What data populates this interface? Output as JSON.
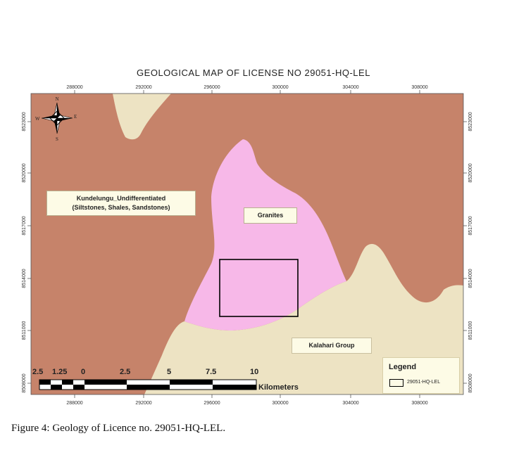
{
  "map": {
    "title": "GEOLOGICAL MAP OF LICENSE NO 29051-HQ-LEL",
    "x_ticks": [
      "288000",
      "292000",
      "296000",
      "300000",
      "304000",
      "308000"
    ],
    "y_ticks": [
      "8523000",
      "8520000",
      "8517000",
      "8514000",
      "8511000",
      "8508000"
    ],
    "units": [
      {
        "name": "Kundelungu_Undifferentiated",
        "detail": "(Siltstones, Shales, Sandstones)",
        "color": "#c6836a"
      },
      {
        "name": "Granites",
        "color": "#f7b8e8"
      },
      {
        "name": "Kalahari Group",
        "color": "#ede3c3"
      }
    ],
    "north_arrow": {
      "n": "N",
      "s": "S",
      "e": "E",
      "w": "W"
    },
    "scale_bar": {
      "labels": [
        "2.5",
        "1.25",
        "0",
        "2.5",
        "5",
        "7.5",
        "10"
      ],
      "units": "Kilometers"
    },
    "legend": {
      "title": "Legend",
      "item": "29051-HQ-LEL"
    }
  },
  "caption": "Figure 4: Geology of Licence no. 29051-HQ-LEL."
}
